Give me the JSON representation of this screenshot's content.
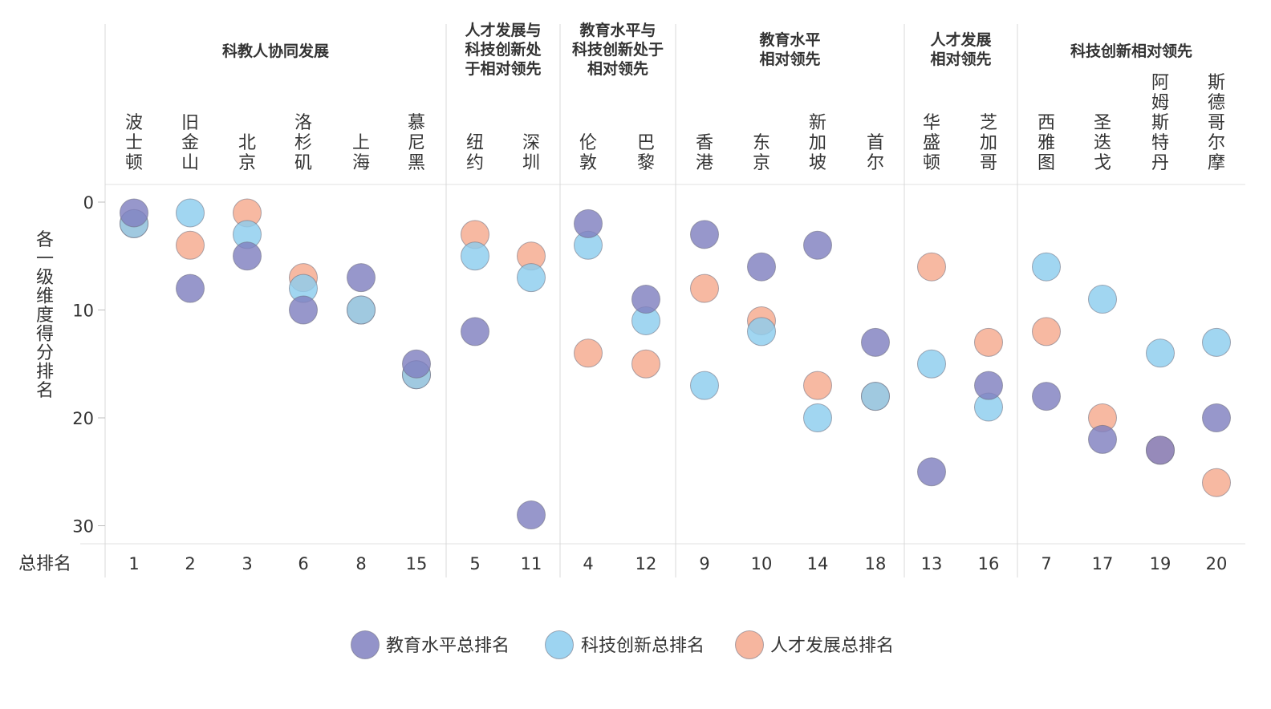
{
  "chart_data": {
    "type": "scatter",
    "ylabel": "各一级维度得分排名",
    "rank_row_label": "总排名",
    "y_reversed": true,
    "ylim": [
      0,
      31
    ],
    "yticks": [
      0,
      10,
      20,
      30
    ],
    "groups": [
      {
        "label": [
          "科教人协同发展"
        ],
        "cities": [
          "波士顿",
          "旧金山",
          "北京",
          "洛杉矶",
          "上海",
          "慕尼黑"
        ]
      },
      {
        "label": [
          "人才发展与",
          "科技创新处",
          "于相对领先"
        ],
        "cities": [
          "纽约",
          "深圳"
        ]
      },
      {
        "label": [
          "教育水平与",
          "科技创新处于",
          "相对领先"
        ],
        "cities": [
          "伦敦",
          "巴黎"
        ]
      },
      {
        "label": [
          "教育水平",
          "相对领先"
        ],
        "cities": [
          "香港",
          "东京",
          "新加坡",
          "首尔"
        ]
      },
      {
        "label": [
          "人才发展",
          "相对领先"
        ],
        "cities": [
          "华盛顿",
          "芝加哥"
        ]
      },
      {
        "label": [
          "科技创新相对领先"
        ],
        "cities": [
          "西雅图",
          "圣迭戈",
          "阿姆斯特丹",
          "斯德哥尔摩"
        ]
      }
    ],
    "categories": [
      "波士顿",
      "旧金山",
      "北京",
      "洛杉矶",
      "上海",
      "慕尼黑",
      "纽约",
      "深圳",
      "伦敦",
      "巴黎",
      "香港",
      "东京",
      "新加坡",
      "首尔",
      "华盛顿",
      "芝加哥",
      "西雅图",
      "圣迭戈",
      "阿姆斯特丹",
      "斯德哥尔摩"
    ],
    "overall_rank": [
      1,
      2,
      3,
      6,
      8,
      15,
      5,
      11,
      4,
      12,
      9,
      10,
      14,
      18,
      13,
      16,
      7,
      17,
      19,
      20
    ],
    "series": [
      {
        "name": "教育水平总排名",
        "color": "#8080c0",
        "values": [
          1,
          8,
          5,
          10,
          7,
          15,
          12,
          29,
          2,
          9,
          3,
          6,
          4,
          13,
          25,
          17,
          18,
          22,
          23,
          20
        ]
      },
      {
        "name": "科技创新总排名",
        "color": "#8ccdee",
        "values": [
          2,
          1,
          3,
          8,
          10,
          16,
          5,
          7,
          4,
          11,
          17,
          12,
          20,
          18,
          15,
          19,
          6,
          9,
          14,
          13
        ]
      },
      {
        "name": "人才发展总排名",
        "color": "#f5a98e",
        "values": [
          2,
          4,
          1,
          7,
          10,
          16,
          3,
          5,
          14,
          15,
          8,
          11,
          17,
          18,
          6,
          13,
          12,
          20,
          23,
          26
        ]
      }
    ]
  }
}
